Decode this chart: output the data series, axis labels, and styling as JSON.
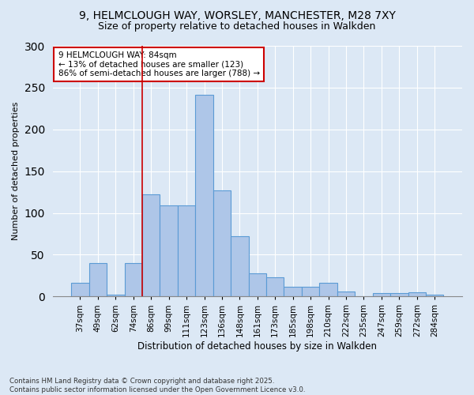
{
  "title1": "9, HELMCLOUGH WAY, WORSLEY, MANCHESTER, M28 7XY",
  "title2": "Size of property relative to detached houses in Walkden",
  "xlabel": "Distribution of detached houses by size in Walkden",
  "ylabel": "Number of detached properties",
  "categories": [
    "37sqm",
    "49sqm",
    "62sqm",
    "74sqm",
    "86sqm",
    "99sqm",
    "111sqm",
    "123sqm",
    "136sqm",
    "148sqm",
    "161sqm",
    "173sqm",
    "185sqm",
    "198sqm",
    "210sqm",
    "222sqm",
    "235sqm",
    "247sqm",
    "259sqm",
    "272sqm",
    "284sqm"
  ],
  "values": [
    16,
    40,
    2,
    40,
    122,
    109,
    109,
    241,
    127,
    72,
    28,
    23,
    12,
    12,
    16,
    6,
    0,
    4,
    4,
    5,
    2
  ],
  "bar_color": "#aec6e8",
  "bar_edge_color": "#5b9bd5",
  "property_line_index": 4,
  "annotation_title": "9 HELMCLOUGH WAY: 84sqm",
  "annotation_line1": "← 13% of detached houses are smaller (123)",
  "annotation_line2": "86% of semi-detached houses are larger (788) →",
  "annotation_box_color": "#ffffff",
  "annotation_box_edge_color": "#cc0000",
  "property_line_color": "#cc0000",
  "ylim": [
    0,
    300
  ],
  "yticks": [
    0,
    50,
    100,
    150,
    200,
    250,
    300
  ],
  "background_color": "#dce8f5",
  "plot_background_color": "#dce8f5",
  "grid_color": "#ffffff",
  "footnote1": "Contains HM Land Registry data © Crown copyright and database right 2025.",
  "footnote2": "Contains public sector information licensed under the Open Government Licence v3.0."
}
